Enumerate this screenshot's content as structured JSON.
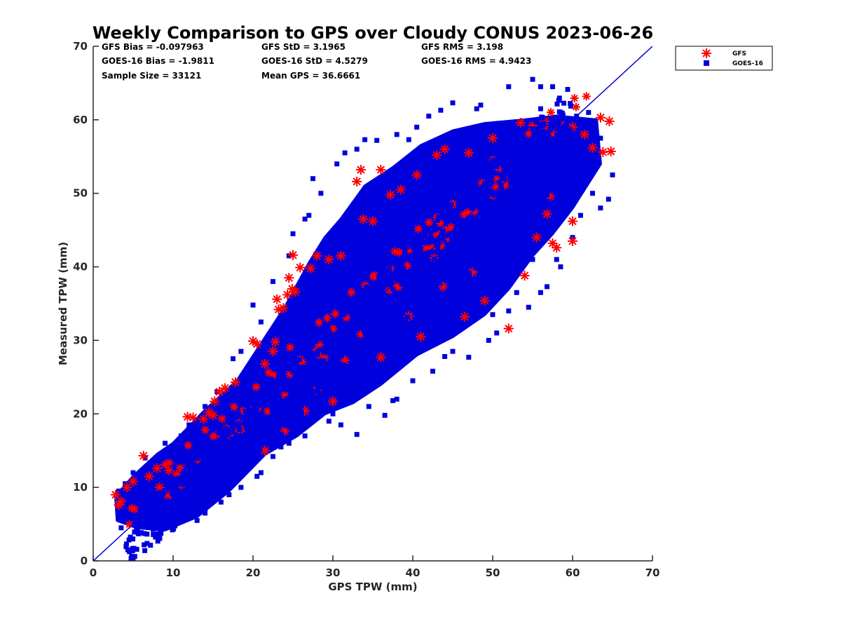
{
  "chart_data": {
    "type": "scatter",
    "title": "Weekly Comparison to GPS over Cloudy CONUS 2023-06-26",
    "xlabel": "GPS TPW (mm)",
    "ylabel": "Measured TPW (mm)",
    "xlim": [
      0,
      70
    ],
    "ylim": [
      0,
      70
    ],
    "xticks": [
      0,
      10,
      20,
      30,
      40,
      50,
      60,
      70
    ],
    "yticks": [
      0,
      10,
      20,
      30,
      40,
      50,
      60,
      70
    ],
    "grid": false,
    "legend_position": "outside top-right",
    "reference_line": {
      "x": [
        0,
        70
      ],
      "y": [
        0,
        70
      ],
      "color": "#0000dd"
    },
    "stats": [
      [
        "GFS Bias = -0.097963",
        "GFS StD = 3.1965",
        "GFS RMS = 3.198"
      ],
      [
        "GOES-16 Bias = -1.9811",
        "GOES-16 StD = 4.5279",
        "GOES-16 RMS = 4.9423"
      ],
      [
        "Sample Size = 33121",
        "Mean GPS = 36.6661",
        ""
      ]
    ],
    "series": [
      {
        "name": "GFS",
        "marker": "asterisk",
        "color": "#ff0000",
        "points": [
          [
            2.8,
            9.0
          ],
          [
            3.2,
            7.6
          ],
          [
            3.5,
            8.1
          ],
          [
            4.2,
            10.0
          ],
          [
            5.0,
            10.8
          ],
          [
            6.3,
            14.3
          ],
          [
            7.0,
            11.5
          ],
          [
            8.0,
            12.6
          ],
          [
            8.3,
            10.0
          ],
          [
            9.5,
            12.3
          ],
          [
            11.8,
            19.6
          ],
          [
            12.5,
            19.5
          ],
          [
            13.8,
            19.3
          ],
          [
            14.5,
            20.2
          ],
          [
            15.0,
            19.8
          ],
          [
            15.2,
            21.7
          ],
          [
            15.8,
            23.0
          ],
          [
            16.5,
            23.5
          ],
          [
            17.8,
            24.3
          ],
          [
            20.0,
            29.9
          ],
          [
            20.5,
            29.5
          ],
          [
            21.5,
            26.8
          ],
          [
            22.5,
            28.5
          ],
          [
            22.8,
            29.8
          ],
          [
            23.0,
            35.6
          ],
          [
            23.2,
            34.2
          ],
          [
            23.8,
            34.4
          ],
          [
            24.3,
            36.2
          ],
          [
            24.5,
            38.5
          ],
          [
            24.9,
            37.0
          ],
          [
            25.0,
            41.6
          ],
          [
            25.3,
            36.6
          ],
          [
            25.9,
            39.9
          ],
          [
            27.2,
            39.8
          ],
          [
            28.0,
            41.5
          ],
          [
            29.5,
            41.0
          ],
          [
            31.0,
            41.5
          ],
          [
            33.0,
            51.6
          ],
          [
            33.5,
            53.2
          ],
          [
            36.0,
            53.2
          ],
          [
            33.8,
            46.5
          ],
          [
            35.0,
            46.2
          ],
          [
            37.2,
            49.8
          ],
          [
            38.5,
            50.5
          ],
          [
            40.5,
            52.5
          ],
          [
            43.0,
            55.2
          ],
          [
            44.0,
            56.0
          ],
          [
            47.0,
            55.5
          ],
          [
            50.0,
            57.5
          ],
          [
            53.5,
            59.6
          ],
          [
            55.0,
            59.2
          ],
          [
            56.5,
            59.8
          ],
          [
            58.5,
            59.3
          ],
          [
            60.0,
            59.0
          ],
          [
            61.5,
            58.0
          ],
          [
            62.5,
            56.2
          ],
          [
            63.8,
            55.6
          ],
          [
            64.6,
            59.8
          ],
          [
            63.5,
            60.3
          ],
          [
            64.8,
            55.7
          ],
          [
            57.5,
            43.2
          ],
          [
            58.0,
            42.6
          ],
          [
            60.0,
            43.5
          ],
          [
            60.0,
            46.2
          ],
          [
            52.0,
            31.6
          ],
          [
            49.0,
            35.4
          ],
          [
            47.5,
            39.3
          ],
          [
            54.0,
            38.8
          ],
          [
            55.5,
            44.0
          ],
          [
            56.8,
            47.2
          ],
          [
            57.2,
            49.6
          ],
          [
            46.5,
            33.2
          ],
          [
            43.8,
            37.3
          ],
          [
            41.0,
            30.5
          ],
          [
            39.5,
            33.3
          ],
          [
            36.0,
            27.7
          ],
          [
            33.5,
            30.8
          ],
          [
            31.5,
            27.3
          ],
          [
            30.0,
            21.7
          ],
          [
            28.0,
            23.2
          ],
          [
            26.5,
            20.4
          ],
          [
            24.0,
            17.7
          ],
          [
            21.5,
            15.0
          ],
          [
            18.2,
            18.0
          ]
        ]
      },
      {
        "name": "GOES-16",
        "marker": "square",
        "color": "#0000dd",
        "cloud_polygon": [
          [
            2.8,
            8.8
          ],
          [
            5.0,
            11.5
          ],
          [
            8.0,
            14.5
          ],
          [
            10.0,
            16.0
          ],
          [
            14.0,
            20.5
          ],
          [
            18.0,
            24.5
          ],
          [
            21.0,
            29.5
          ],
          [
            24.0,
            34.5
          ],
          [
            27.0,
            40.5
          ],
          [
            29.0,
            44.0
          ],
          [
            31.0,
            46.5
          ],
          [
            34.0,
            51.0
          ],
          [
            37.5,
            53.5
          ],
          [
            41.0,
            56.5
          ],
          [
            45.0,
            58.5
          ],
          [
            49.0,
            59.5
          ],
          [
            54.0,
            60.0
          ],
          [
            58.0,
            60.5
          ],
          [
            63.0,
            60.0
          ],
          [
            63.5,
            54.0
          ],
          [
            60.0,
            48.0
          ],
          [
            57.5,
            44.5
          ],
          [
            55.0,
            41.5
          ],
          [
            52.0,
            37.0
          ],
          [
            49.0,
            33.5
          ],
          [
            45.0,
            30.5
          ],
          [
            40.5,
            28.0
          ],
          [
            36.0,
            24.0
          ],
          [
            32.5,
            21.5
          ],
          [
            29.0,
            20.0
          ],
          [
            25.5,
            17.0
          ],
          [
            21.5,
            14.5
          ],
          [
            17.0,
            9.5
          ],
          [
            13.0,
            6.0
          ],
          [
            9.0,
            4.2
          ],
          [
            5.5,
            4.5
          ],
          [
            3.0,
            5.5
          ]
        ],
        "points": [
          [
            3.5,
            4.5
          ],
          [
            5.0,
            5.0
          ],
          [
            7.5,
            4.3
          ],
          [
            9.0,
            4.5
          ],
          [
            10.5,
            5.2
          ],
          [
            12.5,
            6.0
          ],
          [
            14.0,
            7.0
          ],
          [
            16.0,
            8.0
          ],
          [
            18.5,
            10.0
          ],
          [
            21.0,
            12.0
          ],
          [
            22.5,
            14.2
          ],
          [
            24.5,
            16.0
          ],
          [
            26.5,
            17.0
          ],
          [
            29.5,
            19.0
          ],
          [
            31.0,
            18.5
          ],
          [
            33.0,
            17.2
          ],
          [
            36.5,
            19.8
          ],
          [
            38.0,
            22.0
          ],
          [
            40.0,
            24.5
          ],
          [
            42.5,
            25.8
          ],
          [
            47.0,
            27.7
          ],
          [
            49.5,
            30.0
          ],
          [
            52.0,
            34.0
          ],
          [
            54.5,
            34.5
          ],
          [
            56.0,
            36.5
          ],
          [
            56.8,
            37.3
          ],
          [
            58.5,
            40.0
          ],
          [
            58.0,
            41.0
          ],
          [
            60.0,
            44.0
          ],
          [
            61.0,
            47.0
          ],
          [
            62.5,
            50.0
          ],
          [
            63.5,
            48.0
          ],
          [
            64.5,
            49.2
          ],
          [
            65.0,
            52.5
          ],
          [
            63.5,
            57.5
          ],
          [
            62.0,
            61.0
          ],
          [
            60.5,
            60.5
          ],
          [
            58.5,
            61.0
          ],
          [
            56.0,
            61.5
          ],
          [
            55.0,
            65.5
          ],
          [
            56.0,
            64.5
          ],
          [
            57.5,
            64.5
          ],
          [
            52.0,
            64.5
          ],
          [
            48.5,
            62.0
          ],
          [
            48.0,
            61.5
          ],
          [
            45.0,
            62.3
          ],
          [
            43.5,
            61.3
          ],
          [
            42.0,
            60.5
          ],
          [
            40.5,
            59.0
          ],
          [
            39.5,
            57.3
          ],
          [
            38.0,
            58.0
          ],
          [
            35.5,
            57.2
          ],
          [
            34.0,
            57.3
          ],
          [
            33.0,
            56.0
          ],
          [
            31.5,
            55.5
          ],
          [
            30.5,
            54.0
          ],
          [
            27.5,
            52.0
          ],
          [
            28.5,
            50.0
          ],
          [
            27.0,
            47.0
          ],
          [
            26.5,
            46.5
          ],
          [
            25.0,
            44.5
          ],
          [
            24.5,
            41.5
          ],
          [
            22.5,
            38.0
          ],
          [
            20.0,
            34.8
          ],
          [
            21.0,
            32.5
          ],
          [
            18.5,
            28.5
          ],
          [
            17.5,
            27.5
          ],
          [
            15.5,
            23.0
          ],
          [
            14.0,
            21.0
          ],
          [
            12.0,
            18.5
          ],
          [
            11.0,
            17.0
          ],
          [
            10.0,
            15.5
          ],
          [
            9.0,
            16.0
          ],
          [
            6.5,
            14.0
          ],
          [
            5.0,
            12.0
          ],
          [
            4.0,
            10.5
          ],
          [
            3.2,
            9.5
          ],
          [
            3.5,
            8.0
          ],
          [
            14.0,
            6.5
          ],
          [
            13.0,
            5.5
          ],
          [
            17.0,
            9.0
          ],
          [
            20.5,
            11.5
          ],
          [
            23.5,
            15.5
          ],
          [
            25.5,
            17.5
          ],
          [
            30.0,
            20.0
          ],
          [
            34.5,
            21.0
          ],
          [
            37.5,
            21.8
          ],
          [
            44.0,
            27.8
          ],
          [
            45.0,
            28.5
          ],
          [
            50.5,
            31.0
          ],
          [
            53.0,
            36.5
          ],
          [
            55.0,
            41.0
          ],
          [
            50.0,
            33.5
          ]
        ]
      }
    ]
  }
}
